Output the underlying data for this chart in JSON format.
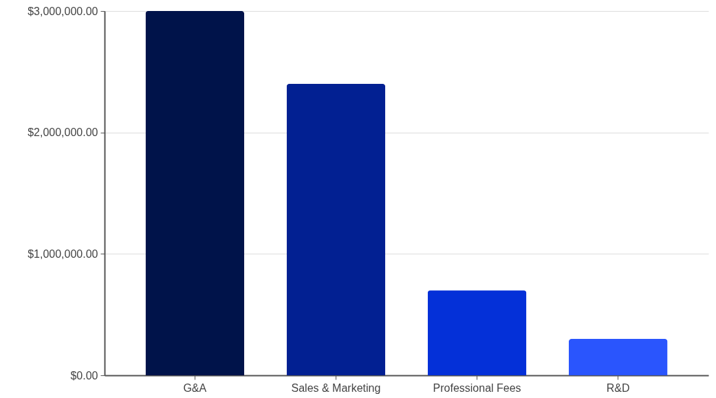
{
  "chart_data": {
    "type": "bar",
    "categories": [
      "G&A",
      "Sales & Marketing",
      "Professional Fees",
      "R&D"
    ],
    "values": [
      3000000,
      2400000,
      700000,
      300000
    ],
    "colors": [
      "#00134a",
      "#022092",
      "#0430d8",
      "#2a55fd"
    ],
    "ylim": [
      0,
      3000000
    ],
    "yticks": [
      {
        "value": 0,
        "label": "$0.00"
      },
      {
        "value": 1000000,
        "label": "$1,000,000.00"
      },
      {
        "value": 2000000,
        "label": "$2,000,000.00"
      },
      {
        "value": 3000000,
        "label": "$3,000,000.00"
      }
    ],
    "grid": "y"
  }
}
